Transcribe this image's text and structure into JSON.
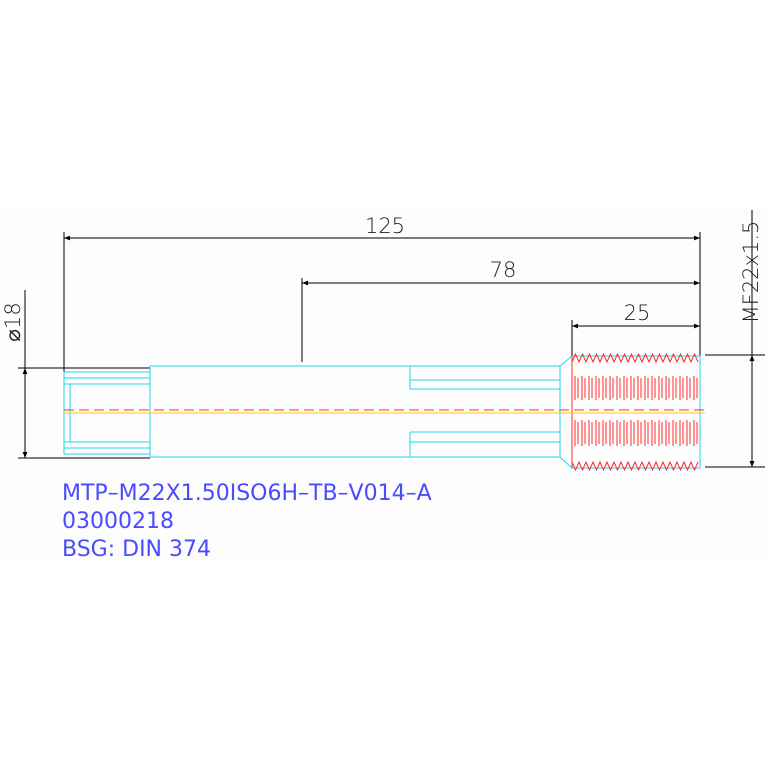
{
  "dimensions": {
    "overall_length": "125",
    "shank_length": "78",
    "thread_length": "25",
    "shank_diameter": "⌀18",
    "thread_size": "MF22x1.5"
  },
  "labels": [
    "MTP–M22X1.50ISO6H–TB–V014–A",
    "03000218",
    "BSG: DIN  374"
  ]
}
